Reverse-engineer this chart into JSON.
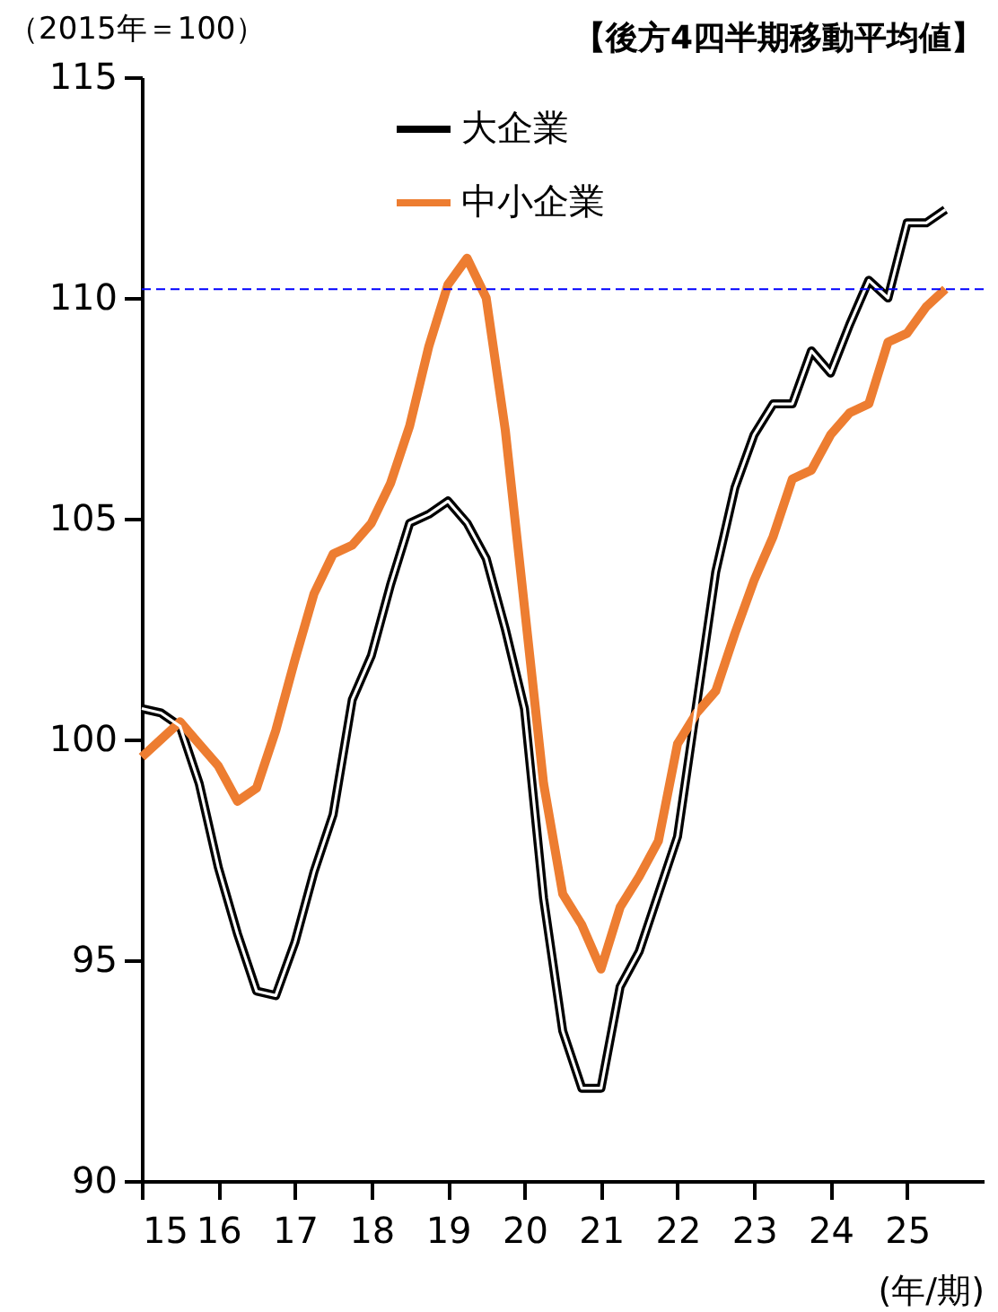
{
  "chart_data": {
    "type": "line",
    "title": "【後方4四半期移動平均値】",
    "ylabel": "（2015年＝100）",
    "xlabel": "(年/期)",
    "x": [
      15,
      15.25,
      15.5,
      15.75,
      16,
      16.25,
      16.5,
      16.75,
      17,
      17.25,
      17.5,
      17.75,
      18,
      18.25,
      18.5,
      18.75,
      19,
      19.25,
      19.5,
      19.75,
      20,
      20.25,
      20.5,
      20.75,
      21,
      21.25,
      21.5,
      21.75,
      22,
      22.25,
      22.5,
      22.75,
      23,
      23.25,
      23.5,
      23.75,
      24,
      24.25,
      24.5,
      24.75,
      25,
      25.25,
      25.5
    ],
    "series": [
      {
        "name": "大企業",
        "color": "#000000",
        "values": [
          100.7,
          100.6,
          100.3,
          99.0,
          97.1,
          95.6,
          94.3,
          94.2,
          95.4,
          97.0,
          98.3,
          100.9,
          101.9,
          103.5,
          104.9,
          105.1,
          105.4,
          104.9,
          104.1,
          102.5,
          100.7,
          96.4,
          93.4,
          92.1,
          92.1,
          94.4,
          95.2,
          96.5,
          97.8,
          100.8,
          103.8,
          105.7,
          106.9,
          107.6,
          107.6,
          108.8,
          108.3,
          109.4,
          110.4,
          110.0,
          111.7,
          111.7,
          112.0
        ]
      },
      {
        "name": "中小企業",
        "color": "#ed7d31",
        "values": [
          99.6,
          100.0,
          100.4,
          99.9,
          99.4,
          98.6,
          98.9,
          100.2,
          101.8,
          103.3,
          104.2,
          104.4,
          104.9,
          105.8,
          107.1,
          108.9,
          110.3,
          110.9,
          110.0,
          107.0,
          103.0,
          99.0,
          96.5,
          95.8,
          94.8,
          96.2,
          96.9,
          97.7,
          99.9,
          100.6,
          101.1,
          102.4,
          103.6,
          104.6,
          105.9,
          106.1,
          106.9,
          107.4,
          107.6,
          109.0,
          109.2,
          109.8,
          110.2
        ]
      }
    ],
    "xlim": [
      15,
      26
    ],
    "xticks": [
      15,
      16,
      17,
      18,
      19,
      20,
      21,
      22,
      23,
      24,
      25
    ],
    "ylim": [
      90,
      115
    ],
    "yticks": [
      90,
      95,
      100,
      105,
      110,
      115
    ],
    "ref_lines": [
      {
        "axis": "y",
        "value": 110.2,
        "color": "#0000ff",
        "line_style": "dashed"
      }
    ],
    "grid": false,
    "legend": "top",
    "marker": "none",
    "line_style": "solid"
  }
}
